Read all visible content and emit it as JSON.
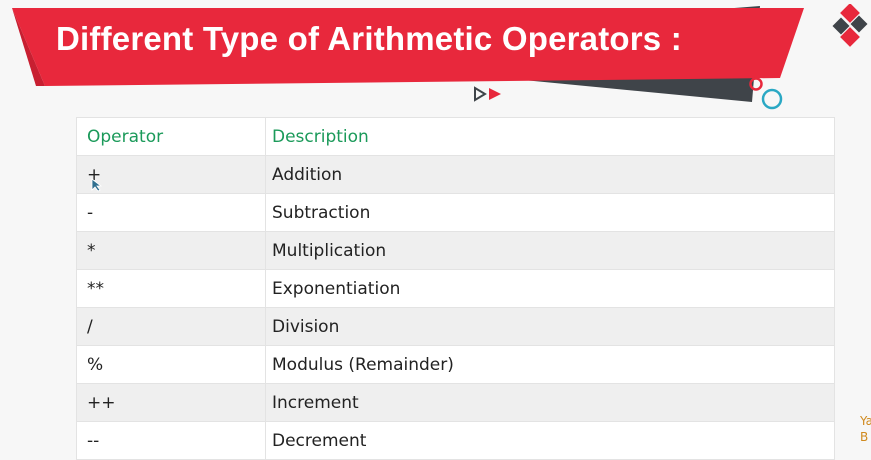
{
  "slide": {
    "title": "Different Type of Arithmetic Operators :",
    "colors": {
      "banner_red": "#e8283c",
      "banner_dark": "#3f4449",
      "header_green": "#1b9a5a",
      "accent_teal": "#2aa8c4"
    }
  },
  "table": {
    "headers": {
      "operator": "Operator",
      "description": "Description"
    },
    "rows": [
      {
        "operator": "+",
        "description": "Addition"
      },
      {
        "operator": "-",
        "description": "Subtraction"
      },
      {
        "operator": "*",
        "description": "Multiplication"
      },
      {
        "operator": "**",
        "description": "Exponentiation"
      },
      {
        "operator": "/",
        "description": "Division"
      },
      {
        "operator": "%",
        "description": "Modulus (Remainder)"
      },
      {
        "operator": "++",
        "description": "Increment"
      },
      {
        "operator": "--",
        "description": "Decrement"
      }
    ]
  },
  "watermark": {
    "line1": "Ya",
    "line2": "B"
  },
  "icons": [
    "logo-diamonds-icon",
    "circles-icon",
    "play-arrows-icon",
    "mouse-cursor-icon"
  ]
}
